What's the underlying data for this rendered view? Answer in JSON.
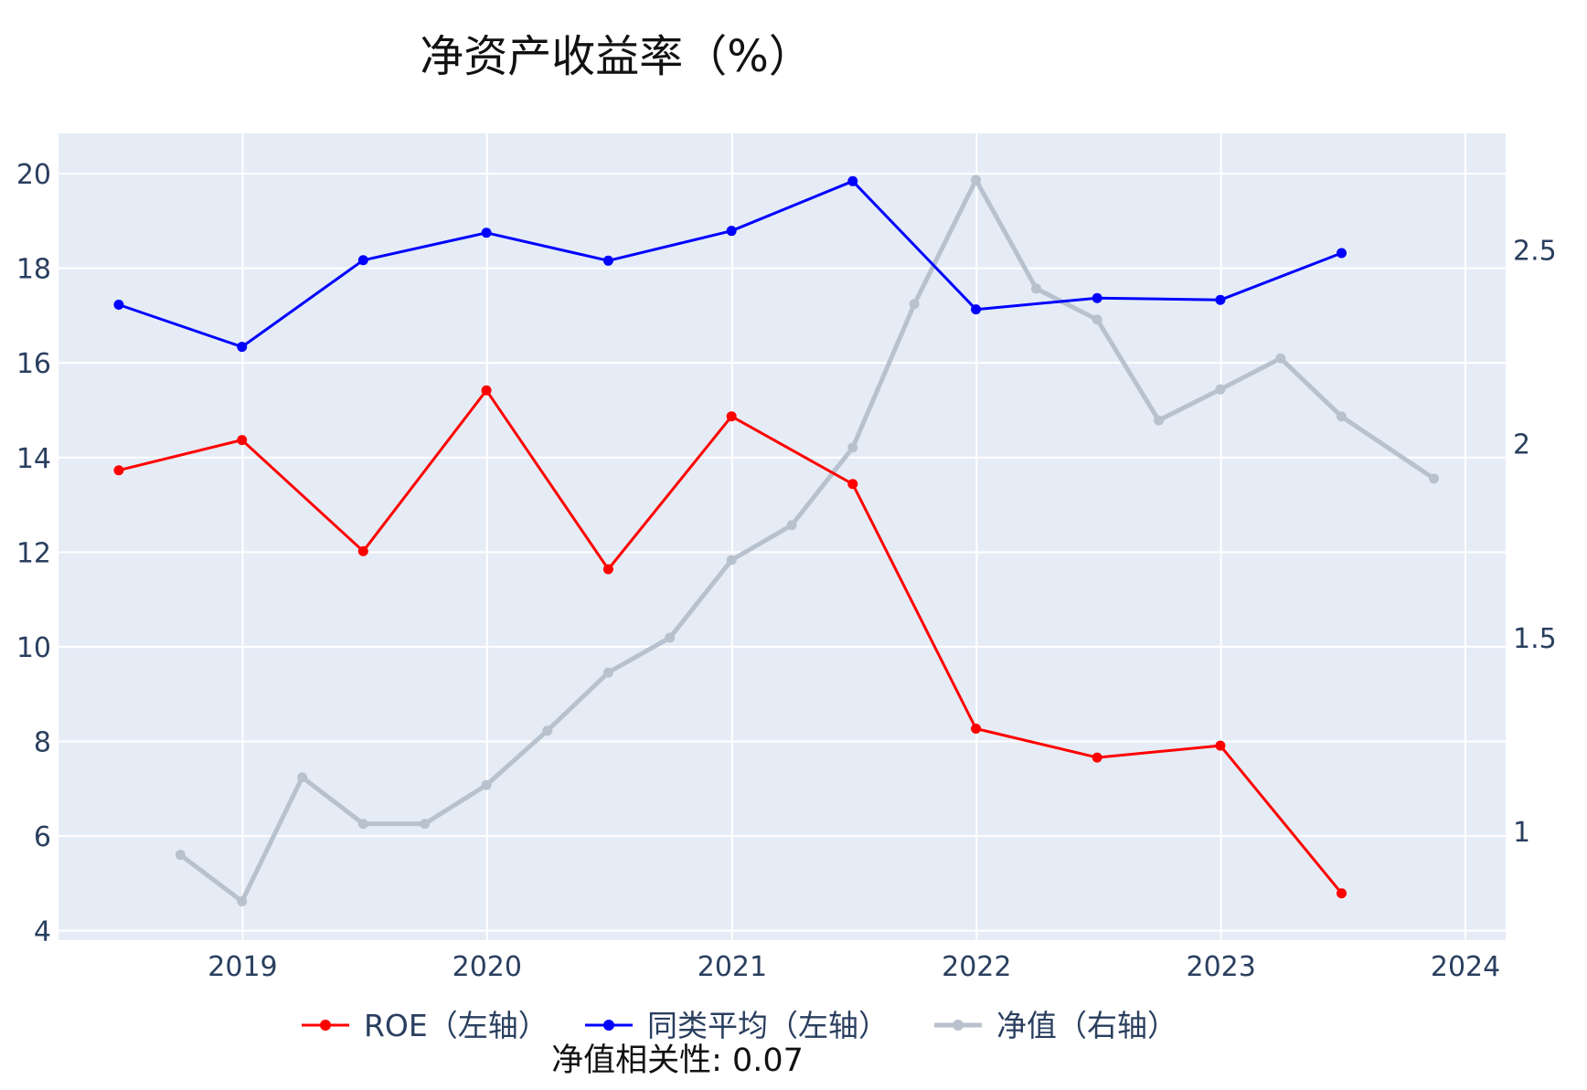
{
  "chart_data": {
    "type": "line",
    "title": "净资产收益率（%）",
    "annotation": "净值相关性: 0.07",
    "colors": {
      "plot_background": "#e5ecf6",
      "grid": "#ffffff",
      "roe": "#ff0000",
      "peer": "#0000ff",
      "nav": "#b8c2ce"
    },
    "x_axis": {
      "type": "date",
      "range": [
        "2018-04-01",
        "2024-03-01"
      ],
      "tick_labels": [
        "2019",
        "2020",
        "2021",
        "2022",
        "2023",
        "2024"
      ]
    },
    "y_left": {
      "range": [
        3.8,
        20.85
      ],
      "ticks": [
        4,
        6,
        8,
        10,
        12,
        14,
        16,
        18,
        20
      ],
      "tick_labels": [
        "4",
        "6",
        "8",
        "10",
        "12",
        "14",
        "16",
        "18",
        "20"
      ]
    },
    "y_right": {
      "range": [
        0.72,
        2.8
      ],
      "ticks": [
        1,
        1.5,
        2,
        2.5
      ],
      "tick_labels": [
        "1",
        "1.5",
        "2",
        "2.5"
      ]
    },
    "legend": {
      "position": "bottom-center"
    },
    "series": [
      {
        "name": "ROE（左轴）",
        "axis": "left",
        "x": [
          "2018-06-30",
          "2018-12-31",
          "2019-06-30",
          "2019-12-31",
          "2020-06-30",
          "2020-12-31",
          "2021-06-30",
          "2021-12-31",
          "2022-06-30",
          "2022-12-31",
          "2023-06-30"
        ],
        "y": [
          13.73,
          14.37,
          12.02,
          15.42,
          11.64,
          14.87,
          13.44,
          8.27,
          7.66,
          7.91,
          4.79
        ]
      },
      {
        "name": "同类平均（左轴）",
        "axis": "left",
        "x": [
          "2018-06-30",
          "2018-12-31",
          "2019-06-30",
          "2019-12-31",
          "2020-06-30",
          "2020-12-31",
          "2021-06-30",
          "2021-12-31",
          "2022-06-30",
          "2022-12-31",
          "2023-06-30"
        ],
        "y": [
          17.23,
          16.34,
          18.17,
          18.75,
          18.16,
          18.79,
          19.84,
          17.13,
          17.37,
          17.33,
          18.32
        ]
      },
      {
        "name": "净值（右轴）",
        "axis": "right",
        "x": [
          "2018-09-30",
          "2018-12-31",
          "2019-03-31",
          "2019-06-30",
          "2019-09-30",
          "2019-12-31",
          "2020-03-31",
          "2020-06-30",
          "2020-09-30",
          "2020-12-31",
          "2021-03-31",
          "2021-06-30",
          "2021-09-30",
          "2021-12-31",
          "2022-03-31",
          "2022-06-30",
          "2022-09-30",
          "2022-12-31",
          "2023-03-31",
          "2023-06-30",
          "2023-11-15"
        ],
        "y": [
          0.94,
          0.82,
          1.14,
          1.02,
          1.02,
          1.12,
          1.26,
          1.41,
          1.5,
          1.7,
          1.79,
          1.99,
          2.36,
          2.68,
          2.4,
          2.32,
          2.06,
          2.14,
          2.22,
          2.07,
          1.91
        ]
      }
    ]
  }
}
